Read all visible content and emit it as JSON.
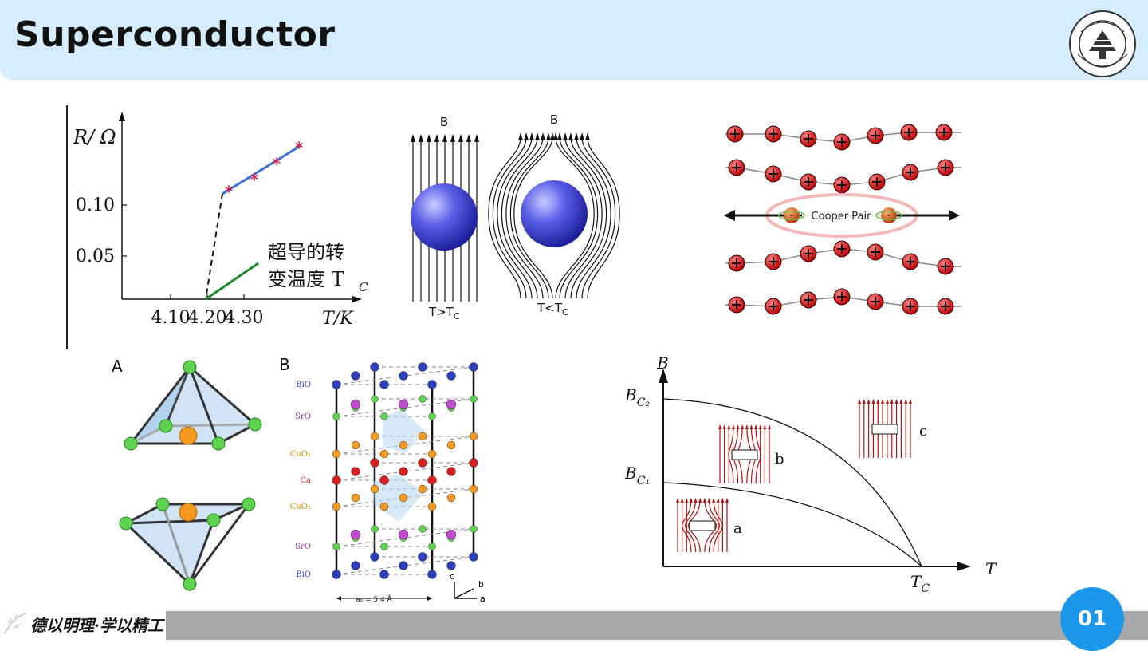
{
  "slide": {
    "title": "Superconductor",
    "motto": "德以明理·学以精工",
    "page_number": "01",
    "logo_text": "BEIJING INSTITUTE OF TECHNOLOGY"
  },
  "resistance_chart": {
    "ylabel": "R/ Ω",
    "xlabel": "T/K",
    "y_ticks": [
      "0.10",
      "0.05"
    ],
    "x_ticks": [
      "4.10",
      "4.20",
      "4.30"
    ],
    "annotation_line1": "超导的转",
    "annotation_line2": "变温度 T",
    "annotation_sub": "C",
    "colors": {
      "normal": "#3a6fd8",
      "super": "#1e8a2a",
      "points": "#d81b3c"
    }
  },
  "meissner": {
    "left_b": "B",
    "right_b": "B",
    "left_label": "T>T",
    "left_label_sub": "C",
    "right_label": "T<T",
    "right_label_sub": "C"
  },
  "cooper": {
    "label": "Cooper Pair",
    "ion_symbol": "+",
    "electron_symbol": "-"
  },
  "octahedra": {
    "panel_label": "A"
  },
  "crystal": {
    "panel_label": "B",
    "layers": [
      "BiO",
      "SrO",
      "CuO₂",
      "Ca",
      "CuO₂",
      "SrO",
      "BiO"
    ],
    "lattice_param": "a₀ = 5.4 Å",
    "axes": [
      "c",
      "b",
      "a"
    ]
  },
  "phase_diagram": {
    "ylabel": "B",
    "xlabel": "T",
    "bc2": "B",
    "bc2_sub": "C₂",
    "bc1": "B",
    "bc1_sub": "C₁",
    "tc": "T",
    "tc_sub": "C",
    "region_a": "a",
    "region_b": "b",
    "region_c": "c"
  }
}
